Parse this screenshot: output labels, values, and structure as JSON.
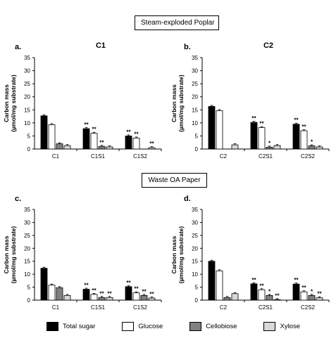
{
  "section_titles": [
    "Steam-exploded Poplar",
    "Waste OA Paper"
  ],
  "ylabel_line1": "Carbon mass",
  "ylabel_line2": "(µmol/mg substrate)",
  "legend": [
    {
      "name": "Total sugar",
      "color": "#000000"
    },
    {
      "name": "Glucose",
      "color": "#ffffff"
    },
    {
      "name": "Cellobiose",
      "color": "#808080"
    },
    {
      "name": "Xylose",
      "color": "#d9d9d9"
    }
  ],
  "chart_data": [
    {
      "type": "bar",
      "panel": "a.",
      "title": "C1",
      "xlabel": "",
      "ylabel": "Carbon mass (µmol/mg substrate)",
      "ylim": [
        0,
        35
      ],
      "yticks": [
        0,
        5,
        10,
        15,
        20,
        25,
        30,
        35
      ],
      "categories": [
        "C1",
        "C1S1",
        "C1S2"
      ],
      "series": [
        {
          "name": "Total sugar",
          "values": [
            12.7,
            7.8,
            5.0
          ]
        },
        {
          "name": "Glucose",
          "values": [
            9.3,
            6.0,
            4.2
          ]
        },
        {
          "name": "Cellobiose",
          "values": [
            2.0,
            1.0,
            0.0
          ]
        },
        {
          "name": "Xylose",
          "values": [
            1.3,
            0.8,
            0.5
          ]
        }
      ],
      "significance": [
        [
          "",
          "",
          "",
          ""
        ],
        [
          "**",
          "**",
          "**",
          ""
        ],
        [
          "**",
          "**",
          "",
          "**"
        ]
      ]
    },
    {
      "type": "bar",
      "panel": "b.",
      "title": "C2",
      "xlabel": "",
      "ylabel": "Carbon mass (µmol/mg substrate)",
      "ylim": [
        0,
        35
      ],
      "yticks": [
        0,
        5,
        10,
        15,
        20,
        25,
        30,
        35
      ],
      "categories": [
        "C2",
        "C2S1",
        "C2S2"
      ],
      "series": [
        {
          "name": "Total sugar",
          "values": [
            16.3,
            10.2,
            9.5
          ]
        },
        {
          "name": "Glucose",
          "values": [
            14.7,
            8.2,
            7.0
          ]
        },
        {
          "name": "Cellobiose",
          "values": [
            0.0,
            0.7,
            1.2
          ]
        },
        {
          "name": "Xylose",
          "values": [
            1.6,
            1.3,
            0.8
          ]
        }
      ],
      "significance": [
        [
          "",
          "",
          "",
          ""
        ],
        [
          "**",
          "**",
          "*",
          ""
        ],
        [
          "**",
          "**",
          "*",
          ""
        ]
      ]
    },
    {
      "type": "bar",
      "panel": "c.",
      "title": "",
      "xlabel": "",
      "ylabel": "Carbon mass (µmol/mg substrate)",
      "ylim": [
        0,
        35
      ],
      "yticks": [
        0,
        5,
        10,
        15,
        20,
        25,
        30,
        35
      ],
      "categories": [
        "C1",
        "C1S1",
        "C1S2"
      ],
      "series": [
        {
          "name": "Total sugar",
          "values": [
            12.3,
            4.2,
            5.2
          ]
        },
        {
          "name": "Glucose",
          "values": [
            5.8,
            2.2,
            2.8
          ]
        },
        {
          "name": "Cellobiose",
          "values": [
            4.8,
            1.0,
            1.8
          ]
        },
        {
          "name": "Xylose",
          "values": [
            1.8,
            1.0,
            0.8
          ]
        }
      ],
      "significance": [
        [
          "",
          "",
          "",
          ""
        ],
        [
          "**",
          "**",
          "**",
          "**"
        ],
        [
          "**",
          "**",
          "**",
          "**"
        ]
      ]
    },
    {
      "type": "bar",
      "panel": "d.",
      "title": "",
      "xlabel": "",
      "ylabel": "Carbon mass (µmol/mg substrate)",
      "ylim": [
        0,
        35
      ],
      "yticks": [
        0,
        5,
        10,
        15,
        20,
        25,
        30,
        35
      ],
      "categories": [
        "C2",
        "C2S1",
        "C2S2"
      ],
      "series": [
        {
          "name": "Total sugar",
          "values": [
            15.0,
            6.3,
            6.2
          ]
        },
        {
          "name": "Glucose",
          "values": [
            11.3,
            4.0,
            3.2
          ]
        },
        {
          "name": "Cellobiose",
          "values": [
            1.0,
            1.8,
            1.8
          ]
        },
        {
          "name": "Xylose",
          "values": [
            2.5,
            0.2,
            0.9
          ]
        }
      ],
      "significance": [
        [
          "",
          "",
          "",
          ""
        ],
        [
          "**",
          "**",
          "*",
          "**"
        ],
        [
          "**",
          "**",
          "*",
          "**"
        ]
      ]
    }
  ]
}
